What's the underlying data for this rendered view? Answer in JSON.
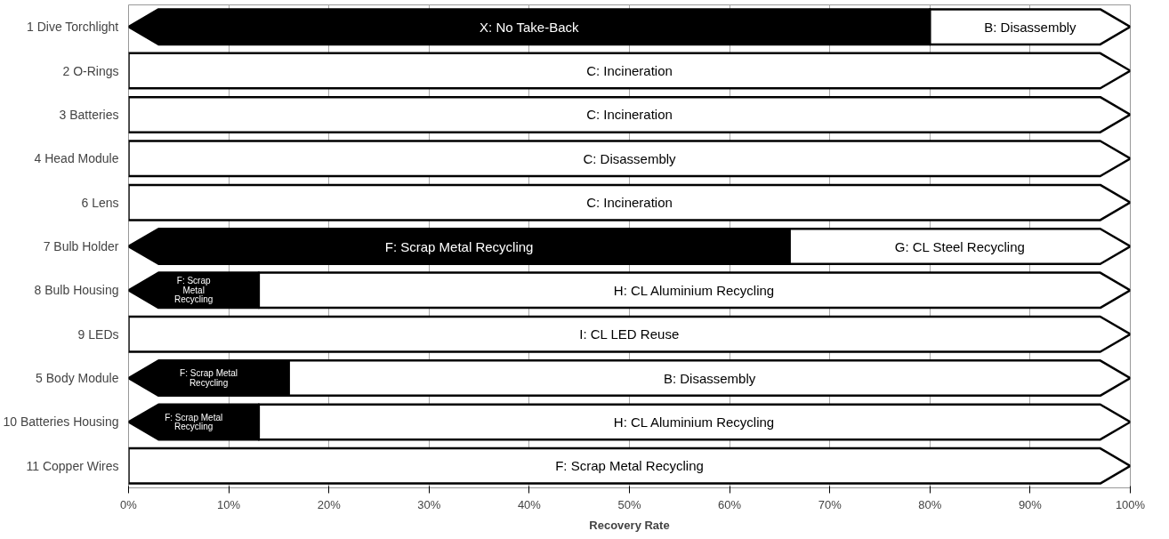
{
  "chart_data": {
    "type": "bar",
    "orientation": "horizontal",
    "stacked": true,
    "xlabel": "Recovery Rate",
    "categories": [
      "1 Dive Torchlight",
      "2 O-Rings",
      "3 Batteries",
      "4 Head Module",
      "6 Lens",
      "7 Bulb Holder",
      "8 Bulb Housing",
      "9 LEDs",
      "5 Body Module",
      "10 Batteries Housing",
      "11 Copper Wires"
    ],
    "series": [
      {
        "color": "#000000",
        "values": [
          80,
          null,
          null,
          null,
          null,
          66,
          13,
          null,
          16,
          13,
          null
        ],
        "value_labels": [
          "X: No Take-Back",
          null,
          null,
          null,
          null,
          "F: Scrap Metal Recycling",
          "F: Scrap\nMetal\nRecycling",
          null,
          "F: Scrap Metal\nRecycling",
          "F: Scrap Metal\nRecycling",
          null
        ]
      },
      {
        "color": "#ffffff",
        "values": [
          20,
          100,
          100,
          100,
          100,
          34,
          87,
          100,
          84,
          87,
          100
        ],
        "value_labels": [
          "B: Disassembly",
          "C: Incineration",
          "C: Incineration",
          "C: Disassembly",
          "C: Incineration",
          "G: CL Steel Recycling",
          "H: CL Aluminium Recycling",
          "I: CL LED Reuse",
          "B: Disassembly",
          "H: CL Aluminium Recycling",
          "F: Scrap Metal Recycling"
        ]
      }
    ],
    "xlim": [
      0,
      100
    ],
    "xticks": [
      {
        "value": 0,
        "label": "0%"
      },
      {
        "value": 10,
        "label": "10%"
      },
      {
        "value": 20,
        "label": "20%"
      },
      {
        "value": 30,
        "label": "30%"
      },
      {
        "value": 40,
        "label": "40%"
      },
      {
        "value": 50,
        "label": "50%"
      },
      {
        "value": 60,
        "label": "60%"
      },
      {
        "value": 70,
        "label": "70%"
      },
      {
        "value": 80,
        "label": "80%"
      },
      {
        "value": 90,
        "label": "90%"
      },
      {
        "value": 100,
        "label": "100%"
      }
    ],
    "grid": "x"
  }
}
